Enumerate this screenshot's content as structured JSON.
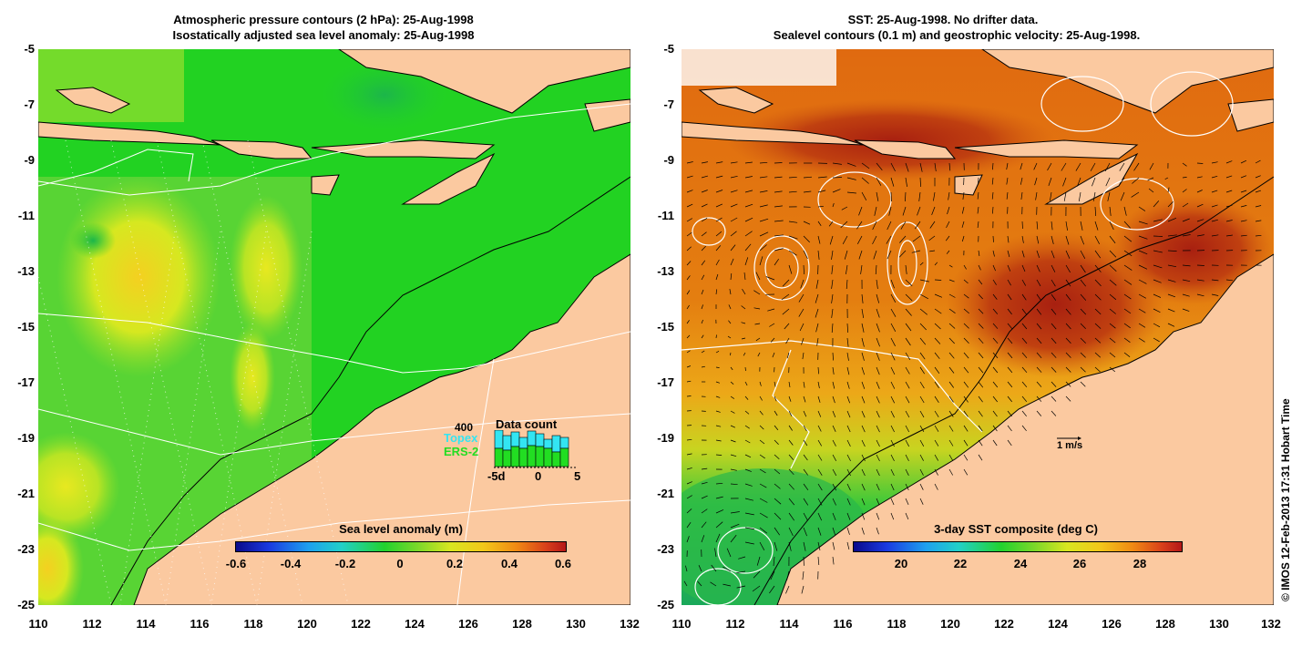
{
  "left_panel": {
    "title_line1": "Atmospheric pressure contours (2 hPa): 25-Aug-1998",
    "title_line2": "Isostatically adjusted sea level anomaly: 25-Aug-1998",
    "y_ticks": [
      "-5",
      "-7",
      "-9",
      "-11",
      "-13",
      "-15",
      "-17",
      "-19",
      "-21",
      "-23",
      "-25"
    ],
    "x_ticks": [
      "110",
      "112",
      "114",
      "116",
      "118",
      "120",
      "122",
      "124",
      "126",
      "128",
      "130",
      "132"
    ],
    "colorbar": {
      "title": "Sea level anomaly (m)",
      "ticks": [
        "-0.6",
        "-0.4",
        "-0.2",
        "0",
        "0.2",
        "0.4",
        "0.6"
      ],
      "min": -0.6,
      "max": 0.6
    },
    "data_count": {
      "title": "Data count",
      "max_label": "400",
      "topex_label": "Topex",
      "ers_label": "ERS-2",
      "x_start": "-5d",
      "x_mid": "0",
      "x_end": "5",
      "topex_color": "#33e5f2",
      "ers_color": "#22dd22"
    }
  },
  "right_panel": {
    "title_line1": "SST: 25-Aug-1998. No drifter data.",
    "title_line2": "Sealevel contours (0.1 m) and geostrophic velocity: 25-Aug-1998.",
    "y_ticks": [
      "-5",
      "-7",
      "-9",
      "-11",
      "-13",
      "-15",
      "-17",
      "-19",
      "-21",
      "-23",
      "-25"
    ],
    "x_ticks": [
      "110",
      "112",
      "114",
      "116",
      "118",
      "120",
      "122",
      "124",
      "126",
      "128",
      "130",
      "132"
    ],
    "colorbar": {
      "title": "3-day SST composite (deg C)",
      "ticks": [
        "20",
        "22",
        "24",
        "26",
        "28"
      ],
      "min": 18.5,
      "max": 29.5
    },
    "velocity_scale_label": "1 m/s"
  },
  "copyright": "© IMOS 12-Feb-2013 17:31 Hobart Time",
  "colors": {
    "land": "#fbc9a0",
    "sla_ocean": "#22d222",
    "sst_ocean": "#e07a10"
  }
}
